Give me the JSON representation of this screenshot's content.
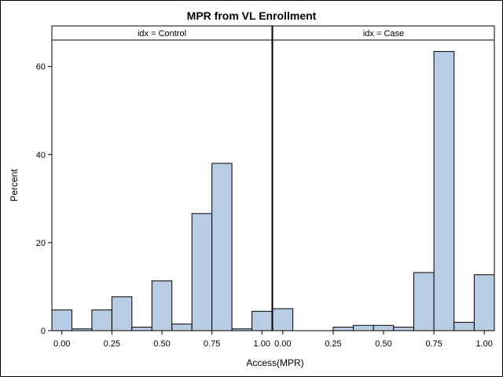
{
  "chart_data": {
    "type": "bar",
    "title": "MPR from VL Enrollment",
    "xlabel": "Access(MPR)",
    "ylabel": "Percent",
    "ylim": [
      0,
      66
    ],
    "yticks": [
      0,
      20,
      40,
      60
    ],
    "xlim": [
      -0.05,
      1.05
    ],
    "xticks": [
      "0.00",
      "0.25",
      "0.50",
      "0.75",
      "1.00"
    ],
    "bin_width": 0.1,
    "bar_color": "#b8cce4",
    "panels": [
      {
        "label": "idx = Control",
        "bins": [
          {
            "x": 0.0,
            "y": 4.7
          },
          {
            "x": 0.1,
            "y": 0.4
          },
          {
            "x": 0.2,
            "y": 4.7
          },
          {
            "x": 0.3,
            "y": 7.7
          },
          {
            "x": 0.4,
            "y": 0.8
          },
          {
            "x": 0.5,
            "y": 11.3
          },
          {
            "x": 0.6,
            "y": 1.5
          },
          {
            "x": 0.7,
            "y": 26.6
          },
          {
            "x": 0.8,
            "y": 38.0
          },
          {
            "x": 0.9,
            "y": 0.4
          },
          {
            "x": 1.0,
            "y": 4.4
          }
        ]
      },
      {
        "label": "idx = Case",
        "bins": [
          {
            "x": 0.0,
            "y": 5.0
          },
          {
            "x": 0.1,
            "y": 0.0
          },
          {
            "x": 0.2,
            "y": 0.0
          },
          {
            "x": 0.3,
            "y": 0.8
          },
          {
            "x": 0.4,
            "y": 1.2
          },
          {
            "x": 0.5,
            "y": 1.2
          },
          {
            "x": 0.6,
            "y": 0.8
          },
          {
            "x": 0.7,
            "y": 13.2
          },
          {
            "x": 0.8,
            "y": 63.4
          },
          {
            "x": 0.9,
            "y": 1.9
          },
          {
            "x": 1.0,
            "y": 12.7
          }
        ]
      }
    ]
  }
}
